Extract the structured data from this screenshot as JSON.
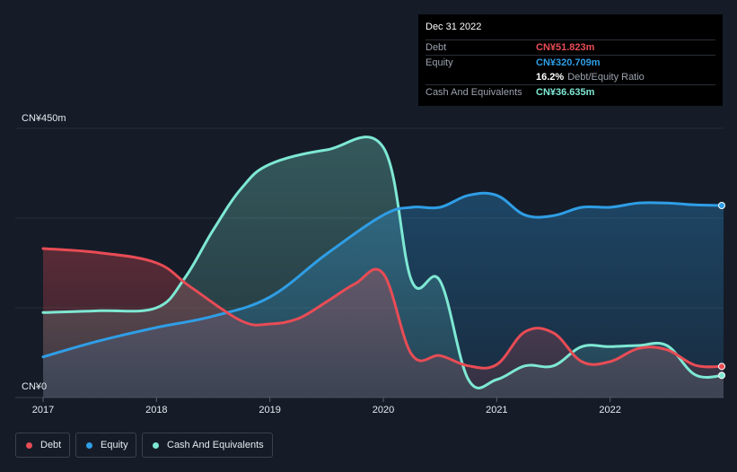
{
  "tooltip": {
    "date": "Dec 31 2022",
    "rows": [
      {
        "label": "Debt",
        "value": "CN¥51.823m",
        "color": "#e84c55"
      },
      {
        "label": "Equity",
        "value": "CN¥320.709m",
        "color": "#2f9ee6"
      },
      {
        "ratio": "16.2%",
        "ratio_label": "Debt/Equity Ratio"
      },
      {
        "label": "Cash And Equivalents",
        "value": "CN¥36.635m",
        "color": "#7ee8d4"
      }
    ]
  },
  "chart_data": {
    "type": "area",
    "y_top_label": "CN¥450m",
    "y_bottom_label": "CN¥0",
    "ylim": [
      0,
      450
    ],
    "xlim": [
      2017,
      2023
    ],
    "x_ticks": [
      "2017",
      "2018",
      "2019",
      "2020",
      "2021",
      "2022"
    ],
    "legend_position": "bottom-left",
    "series": [
      {
        "name": "Debt",
        "color": "#e84c55",
        "points": [
          [
            2017.0,
            249
          ],
          [
            2017.5,
            242
          ],
          [
            2018.0,
            225
          ],
          [
            2018.3,
            185
          ],
          [
            2018.75,
            128
          ],
          [
            2019.0,
            123
          ],
          [
            2019.25,
            132
          ],
          [
            2019.5,
            160
          ],
          [
            2019.75,
            190
          ],
          [
            2020.0,
            207
          ],
          [
            2020.25,
            72
          ],
          [
            2020.5,
            70
          ],
          [
            2020.75,
            53
          ],
          [
            2021.0,
            55
          ],
          [
            2021.25,
            110
          ],
          [
            2021.5,
            108
          ],
          [
            2021.75,
            60
          ],
          [
            2022.0,
            60
          ],
          [
            2022.25,
            82
          ],
          [
            2022.5,
            80
          ],
          [
            2022.75,
            54
          ],
          [
            2023.0,
            52
          ]
        ]
      },
      {
        "name": "Equity",
        "color": "#2f9ee6",
        "points": [
          [
            2017.0,
            68
          ],
          [
            2017.5,
            95
          ],
          [
            2018.0,
            117
          ],
          [
            2018.5,
            136
          ],
          [
            2019.0,
            168
          ],
          [
            2019.5,
            240
          ],
          [
            2020.0,
            305
          ],
          [
            2020.25,
            318
          ],
          [
            2020.5,
            318
          ],
          [
            2020.75,
            338
          ],
          [
            2021.0,
            338
          ],
          [
            2021.25,
            305
          ],
          [
            2021.5,
            304
          ],
          [
            2021.75,
            318
          ],
          [
            2022.0,
            318
          ],
          [
            2022.25,
            325
          ],
          [
            2022.5,
            325
          ],
          [
            2022.75,
            322
          ],
          [
            2023.0,
            321
          ]
        ]
      },
      {
        "name": "Cash And Equivalents",
        "color": "#7ee8d4",
        "points": [
          [
            2017.0,
            142
          ],
          [
            2017.5,
            145
          ],
          [
            2018.0,
            150
          ],
          [
            2018.25,
            200
          ],
          [
            2018.5,
            280
          ],
          [
            2018.75,
            350
          ],
          [
            2019.0,
            390
          ],
          [
            2019.5,
            414
          ],
          [
            2020.0,
            418
          ],
          [
            2020.25,
            195
          ],
          [
            2020.5,
            195
          ],
          [
            2020.75,
            30
          ],
          [
            2021.0,
            30
          ],
          [
            2021.25,
            53
          ],
          [
            2021.5,
            53
          ],
          [
            2021.75,
            85
          ],
          [
            2022.0,
            85
          ],
          [
            2022.25,
            87
          ],
          [
            2022.5,
            87
          ],
          [
            2022.75,
            38
          ],
          [
            2023.0,
            37
          ]
        ]
      }
    ]
  }
}
